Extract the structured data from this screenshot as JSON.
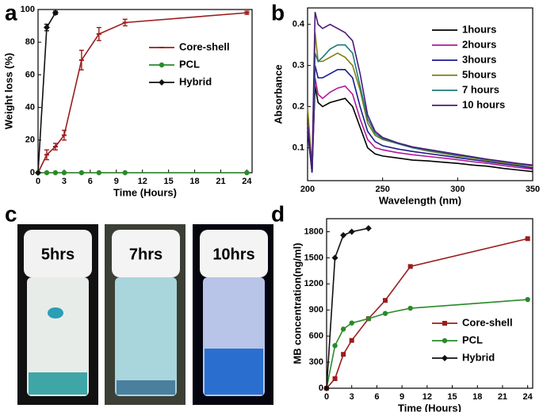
{
  "panel_c": {
    "label": "c",
    "vials": [
      "5hrs",
      "7hrs",
      "10hrs"
    ]
  },
  "chart_data": [
    {
      "type": "line",
      "label": "a",
      "x_label": "Time (Hours)",
      "y_label": "Weight loss (%)",
      "xlim": [
        0,
        24.6
      ],
      "ylim": [
        0,
        100
      ],
      "xticks": [
        0,
        3,
        6,
        9,
        12,
        15,
        18,
        21,
        24
      ],
      "yticks": [
        0,
        20,
        40,
        60,
        80,
        100
      ],
      "legend": "upper right",
      "series": [
        {
          "name": "Core-shell",
          "color": "#9b1c1c",
          "marker": "bar",
          "x": [
            0,
            1,
            2,
            3,
            5,
            7,
            10,
            24
          ],
          "values": [
            0,
            11,
            16,
            23,
            69,
            85,
            92,
            98
          ],
          "errors": [
            0,
            3,
            2,
            3,
            6,
            4,
            2,
            1
          ]
        },
        {
          "name": "PCL",
          "color": "#2a8a2a",
          "marker": "circle",
          "x": [
            0,
            1,
            2,
            3,
            5,
            7,
            10,
            24
          ],
          "values": [
            0,
            0,
            0,
            0,
            0,
            0,
            0,
            0
          ]
        },
        {
          "name": "Hybrid",
          "color": "#111111",
          "marker": "diamond",
          "x": [
            0,
            1,
            2
          ],
          "values": [
            0,
            89,
            98
          ],
          "errors": [
            0,
            2,
            1
          ]
        }
      ]
    },
    {
      "type": "line",
      "label": "b",
      "x_label": "Wavelength (nm)",
      "y_label": "Absorbance",
      "xlim": [
        200,
        350
      ],
      "ylim": [
        0.02,
        0.44
      ],
      "xticks": [
        200,
        250,
        300,
        350
      ],
      "yticks": [
        0.1,
        0.2,
        0.3,
        0.4
      ],
      "legend": "right",
      "x": [
        200,
        203,
        205,
        207,
        210,
        215,
        220,
        225,
        230,
        235,
        240,
        245,
        250,
        260,
        270,
        280,
        290,
        300,
        310,
        320,
        330,
        340,
        350
      ],
      "series": [
        {
          "name": "1hours",
          "color": "#000000",
          "values": [
            0.14,
            0.04,
            0.25,
            0.21,
            0.2,
            0.21,
            0.215,
            0.22,
            0.2,
            0.15,
            0.1,
            0.085,
            0.08,
            0.075,
            0.07,
            0.068,
            0.065,
            0.062,
            0.058,
            0.055,
            0.05,
            0.046,
            0.042
          ]
        },
        {
          "name": "2hours",
          "color": "#b0189a",
          "values": [
            0.15,
            0.04,
            0.27,
            0.23,
            0.22,
            0.235,
            0.245,
            0.25,
            0.23,
            0.17,
            0.12,
            0.1,
            0.095,
            0.088,
            0.083,
            0.079,
            0.075,
            0.071,
            0.066,
            0.062,
            0.057,
            0.052,
            0.048
          ]
        },
        {
          "name": "3hours",
          "color": "#1a1a8c",
          "values": [
            0.15,
            0.04,
            0.3,
            0.27,
            0.27,
            0.28,
            0.29,
            0.29,
            0.27,
            0.2,
            0.14,
            0.115,
            0.105,
            0.097,
            0.091,
            0.086,
            0.081,
            0.076,
            0.071,
            0.066,
            0.061,
            0.056,
            0.051
          ]
        },
        {
          "name": "5hours",
          "color": "#7f7f17",
          "values": [
            0.2,
            0.05,
            0.38,
            0.31,
            0.31,
            0.32,
            0.33,
            0.32,
            0.3,
            0.24,
            0.16,
            0.13,
            0.12,
            0.11,
            0.1,
            0.092,
            0.086,
            0.08,
            0.075,
            0.069,
            0.064,
            0.059,
            0.055
          ]
        },
        {
          "name": "7 hours",
          "color": "#1e7a7a",
          "values": [
            0.16,
            0.05,
            0.33,
            0.31,
            0.32,
            0.34,
            0.35,
            0.35,
            0.33,
            0.25,
            0.17,
            0.135,
            0.122,
            0.11,
            0.1,
            0.094,
            0.088,
            0.082,
            0.077,
            0.071,
            0.066,
            0.061,
            0.057
          ]
        },
        {
          "name": "10 hours",
          "color": "#4b1a7a",
          "values": [
            0.16,
            0.05,
            0.43,
            0.4,
            0.39,
            0.4,
            0.39,
            0.38,
            0.36,
            0.28,
            0.18,
            0.14,
            0.125,
            0.112,
            0.102,
            0.096,
            0.09,
            0.084,
            0.078,
            0.072,
            0.067,
            0.062,
            0.058
          ]
        }
      ]
    },
    {
      "type": "line",
      "label": "d",
      "x_label": "Time (Hours)",
      "y_label": "MB concentration(ng/ml)",
      "xlim": [
        0,
        24.6
      ],
      "ylim": [
        0,
        1950
      ],
      "xticks": [
        0,
        3,
        6,
        9,
        12,
        15,
        18,
        21,
        24
      ],
      "yticks": [
        0,
        300,
        600,
        900,
        1200,
        1500,
        1800
      ],
      "legend": "lower right",
      "series": [
        {
          "name": "Core-shell",
          "color": "#9b1c1c",
          "marker": "square",
          "x": [
            0,
            1,
            2,
            3,
            5,
            7,
            10,
            24
          ],
          "values": [
            0,
            110,
            390,
            550,
            800,
            1010,
            1400,
            1720
          ]
        },
        {
          "name": "PCL",
          "color": "#2a8a2a",
          "marker": "circle",
          "x": [
            0,
            1,
            2,
            3,
            5,
            7,
            10,
            24
          ],
          "values": [
            0,
            490,
            680,
            750,
            800,
            860,
            920,
            1020
          ]
        },
        {
          "name": "Hybrid",
          "color": "#111111",
          "marker": "diamond",
          "x": [
            0,
            1,
            2,
            3,
            5
          ],
          "values": [
            0,
            1500,
            1760,
            1800,
            1840
          ]
        }
      ]
    }
  ]
}
